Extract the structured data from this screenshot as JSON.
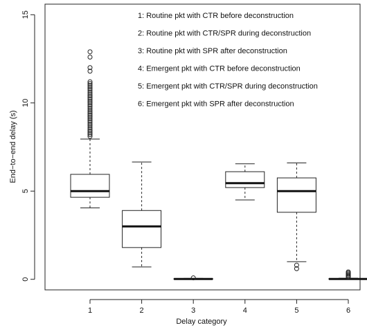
{
  "chart_data": {
    "type": "boxplot",
    "xlabel": "Delay category",
    "ylabel": "End−to−end delay (s)",
    "ylim": [
      -0.6,
      15.6
    ],
    "y_ticks": [
      0,
      5,
      10,
      15
    ],
    "categories": [
      "1",
      "2",
      "3",
      "4",
      "5",
      "6"
    ],
    "boxes": [
      {
        "category": "1",
        "whisker_low": 4.05,
        "q1": 4.65,
        "median": 5.0,
        "q3": 5.95,
        "whisker_high": 7.95,
        "outliers": [
          8.1,
          8.2,
          8.3,
          8.4,
          8.5,
          8.6,
          8.7,
          8.8,
          8.9,
          9.0,
          9.1,
          9.2,
          9.3,
          9.4,
          9.5,
          9.6,
          9.7,
          9.8,
          9.9,
          10.0,
          10.1,
          10.2,
          10.3,
          10.4,
          10.5,
          10.6,
          10.7,
          10.8,
          10.9,
          11.0,
          11.1,
          11.2,
          11.8,
          12.0,
          12.6,
          12.9
        ]
      },
      {
        "category": "2",
        "whisker_low": 0.7,
        "q1": 1.8,
        "median": 3.0,
        "q3": 3.9,
        "whisker_high": 6.65,
        "outliers": []
      },
      {
        "category": "3",
        "whisker_low": 0.0,
        "q1": 0.0,
        "median": 0.02,
        "q3": 0.04,
        "whisker_high": 0.05,
        "outliers": [
          0.08
        ]
      },
      {
        "category": "4",
        "whisker_low": 4.5,
        "q1": 5.2,
        "median": 5.45,
        "q3": 6.1,
        "whisker_high": 6.55,
        "outliers": []
      },
      {
        "category": "5",
        "whisker_low": 1.0,
        "q1": 3.8,
        "median": 5.0,
        "q3": 5.75,
        "whisker_high": 6.6,
        "outliers": [
          0.8,
          0.6
        ]
      },
      {
        "category": "6",
        "whisker_low": 0.0,
        "q1": 0.0,
        "median": 0.02,
        "q3": 0.04,
        "whisker_high": 0.06,
        "outliers": [
          0.12,
          0.18,
          0.24,
          0.3,
          0.36,
          0.42
        ]
      }
    ],
    "legend": {
      "placement": "top-right",
      "entries": [
        "1: Routine pkt with CTR before deconstruction",
        "2: Routine pkt with CTR/SPR during deconstruction",
        "3: Routine pkt with SPR after deconstruction",
        "4: Emergent pkt with CTR before deconstruction",
        "5: Emergent pkt with CTR/SPR during deconstruction",
        "6: Emergent pkt with SPR after deconstruction"
      ]
    },
    "grid": false
  }
}
